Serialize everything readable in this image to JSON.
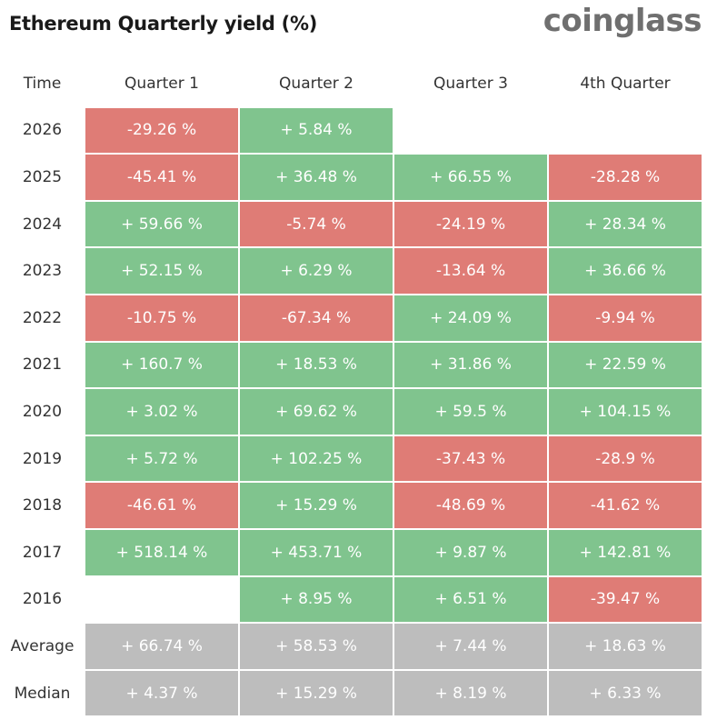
{
  "title": "Ethereum Quarterly yield (%)",
  "logo": "coinglass",
  "colors": {
    "positive": "#80c48e",
    "negative": "#df7c76",
    "summary": "#bdbdbd"
  },
  "chart_data": {
    "type": "table",
    "title": "Ethereum Quarterly yield (%)",
    "columns": [
      "Time",
      "Quarter 1",
      "Quarter 2",
      "Quarter 3",
      "4th Quarter"
    ],
    "rows": [
      {
        "label": "2026",
        "cells": [
          "-29.26 %",
          "+ 5.84 %",
          "",
          ""
        ],
        "values": [
          -29.26,
          5.84,
          null,
          null
        ]
      },
      {
        "label": "2025",
        "cells": [
          "-45.41 %",
          "+ 36.48 %",
          "+ 66.55 %",
          "-28.28 %"
        ],
        "values": [
          -45.41,
          36.48,
          66.55,
          -28.28
        ]
      },
      {
        "label": "2024",
        "cells": [
          "+ 59.66 %",
          "-5.74 %",
          "-24.19 %",
          "+ 28.34 %"
        ],
        "values": [
          59.66,
          -5.74,
          -24.19,
          28.34
        ]
      },
      {
        "label": "2023",
        "cells": [
          "+ 52.15 %",
          "+ 6.29 %",
          "-13.64 %",
          "+ 36.66 %"
        ],
        "values": [
          52.15,
          6.29,
          -13.64,
          36.66
        ]
      },
      {
        "label": "2022",
        "cells": [
          "-10.75 %",
          "-67.34 %",
          "+ 24.09 %",
          "-9.94 %"
        ],
        "values": [
          -10.75,
          -67.34,
          24.09,
          -9.94
        ]
      },
      {
        "label": "2021",
        "cells": [
          "+ 160.7 %",
          "+ 18.53 %",
          "+ 31.86 %",
          "+ 22.59 %"
        ],
        "values": [
          160.7,
          18.53,
          31.86,
          22.59
        ]
      },
      {
        "label": "2020",
        "cells": [
          "+ 3.02 %",
          "+ 69.62 %",
          "+ 59.5 %",
          "+ 104.15 %"
        ],
        "values": [
          3.02,
          69.62,
          59.5,
          104.15
        ]
      },
      {
        "label": "2019",
        "cells": [
          "+ 5.72 %",
          "+ 102.25 %",
          "-37.43 %",
          "-28.9 %"
        ],
        "values": [
          5.72,
          102.25,
          -37.43,
          -28.9
        ]
      },
      {
        "label": "2018",
        "cells": [
          "-46.61 %",
          "+ 15.29 %",
          "-48.69 %",
          "-41.62 %"
        ],
        "values": [
          -46.61,
          15.29,
          -48.69,
          -41.62
        ]
      },
      {
        "label": "2017",
        "cells": [
          "+ 518.14 %",
          "+ 453.71 %",
          "+ 9.87 %",
          "+ 142.81 %"
        ],
        "values": [
          518.14,
          453.71,
          9.87,
          142.81
        ]
      },
      {
        "label": "2016",
        "cells": [
          "",
          "+ 8.95 %",
          "+ 6.51 %",
          "-39.47 %"
        ],
        "values": [
          null,
          8.95,
          6.51,
          -39.47
        ]
      }
    ],
    "summary": [
      {
        "label": "Average",
        "cells": [
          "+ 66.74 %",
          "+ 58.53 %",
          "+ 7.44 %",
          "+ 18.63 %"
        ],
        "values": [
          66.74,
          58.53,
          7.44,
          18.63
        ]
      },
      {
        "label": "Median",
        "cells": [
          "+ 4.37 %",
          "+ 15.29 %",
          "+ 8.19 %",
          "+ 6.33 %"
        ],
        "values": [
          4.37,
          15.29,
          8.19,
          6.33
        ]
      }
    ]
  }
}
